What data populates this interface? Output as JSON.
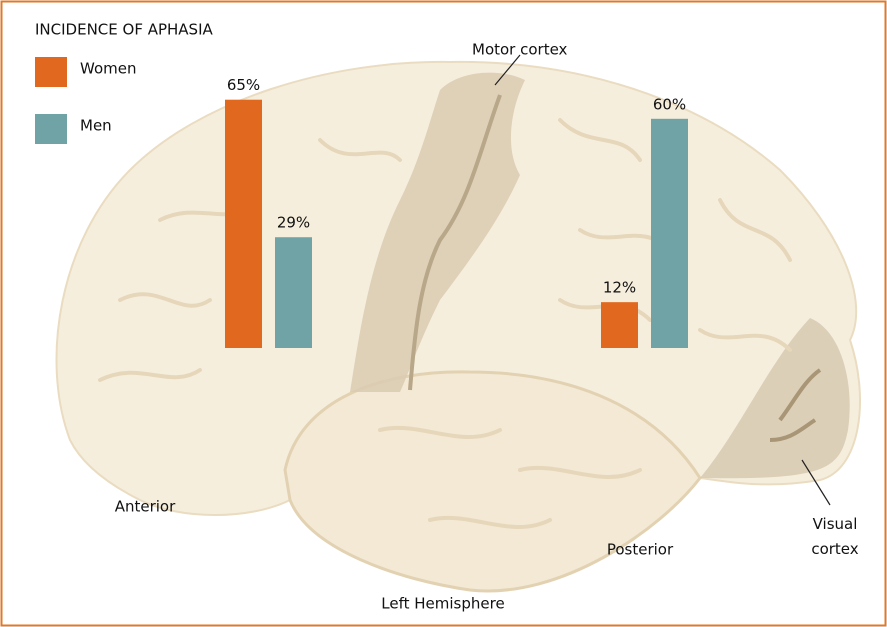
{
  "chart_data": {
    "type": "bar",
    "title": "INCIDENCE OF APHASIA",
    "categories": [
      "Anterior",
      "Posterior"
    ],
    "series": [
      {
        "name": "Women",
        "color": "#e0691f",
        "values": [
          65,
          12
        ],
        "value_labels": [
          "65%",
          "12%"
        ]
      },
      {
        "name": "Men",
        "color": "#6fa3a6",
        "values": [
          29,
          60
        ],
        "value_labels": [
          "29%",
          "60%"
        ]
      }
    ],
    "annotations": [
      "Motor cortex",
      "Visual cortex",
      "Left Hemisphere"
    ]
  }
}
